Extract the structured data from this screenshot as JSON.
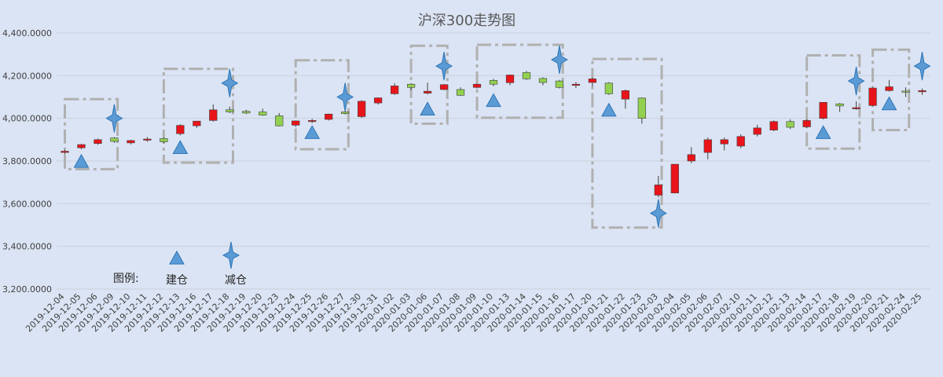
{
  "chart_data": {
    "type": "candlestick",
    "title": "沪深300走势图",
    "ylim": [
      3200,
      4400
    ],
    "y_ticks": [
      "3,200.0000",
      "3,400.0000",
      "3,600.0000",
      "3,800.0000",
      "4,000.0000",
      "4,200.0000",
      "4,400.0000"
    ],
    "y_tick_values": [
      3200,
      3400,
      3600,
      3800,
      4000,
      4200,
      4400
    ],
    "grid": true,
    "colors": {
      "up": "#e8141a",
      "down": "#92d050",
      "marker": "#5b9bd5",
      "marker_stroke": "#2e75b6",
      "box": "#b0b0b0",
      "grid": "#c8d0dc"
    },
    "dates": [
      "2019-12-04",
      "2019-12-05",
      "2019-12-06",
      "2019-12-09",
      "2019-12-10",
      "2019-12-11",
      "2019-12-12",
      "2019-12-13",
      "2019-12-16",
      "2019-12-17",
      "2019-12-18",
      "2019-12-19",
      "2019-12-20",
      "2019-12-23",
      "2019-12-24",
      "2019-12-25",
      "2019-12-26",
      "2019-12-27",
      "2019-12-30",
      "2019-12-31",
      "2020-01-02",
      "2020-01-03",
      "2020-01-06",
      "2020-01-07",
      "2020-01-08",
      "2020-01-09",
      "2020-01-10",
      "2020-01-13",
      "2020-01-14",
      "2020-01-15",
      "2020-01-16",
      "2020-01-17",
      "2020-01-20",
      "2020-01-21",
      "2020-01-22",
      "2020-01-23",
      "2020-02-03",
      "2020-02-04",
      "2020-02-05",
      "2020-02-06",
      "2020-02-07",
      "2020-02-10",
      "2020-02-11",
      "2020-02-12",
      "2020-02-13",
      "2020-02-14",
      "2020-02-17",
      "2020-02-18",
      "2020-02-19",
      "2020-02-20",
      "2020-02-21",
      "2020-02-24",
      "2020-02-25"
    ],
    "candles": [
      {
        "o": 3840,
        "h": 3852,
        "l": 3832,
        "c": 3846
      },
      {
        "o": 3862,
        "h": 3880,
        "l": 3855,
        "c": 3877
      },
      {
        "o": 3882,
        "h": 3905,
        "l": 3876,
        "c": 3900
      },
      {
        "o": 3908,
        "h": 3912,
        "l": 3885,
        "c": 3892
      },
      {
        "o": 3885,
        "h": 3900,
        "l": 3878,
        "c": 3896
      },
      {
        "o": 3900,
        "h": 3912,
        "l": 3890,
        "c": 3903
      },
      {
        "o": 3905,
        "h": 3910,
        "l": 3883,
        "c": 3890
      },
      {
        "o": 3928,
        "h": 3972,
        "l": 3920,
        "c": 3967
      },
      {
        "o": 3965,
        "h": 3988,
        "l": 3955,
        "c": 3987
      },
      {
        "o": 3990,
        "h": 4065,
        "l": 3985,
        "c": 4040
      },
      {
        "o": 4040,
        "h": 4055,
        "l": 4025,
        "c": 4030
      },
      {
        "o": 4033,
        "h": 4040,
        "l": 4020,
        "c": 4025
      },
      {
        "o": 4030,
        "h": 4045,
        "l": 4012,
        "c": 4015
      },
      {
        "o": 4012,
        "h": 4025,
        "l": 3962,
        "c": 3965
      },
      {
        "o": 3968,
        "h": 3990,
        "l": 3960,
        "c": 3988
      },
      {
        "o": 3985,
        "h": 3998,
        "l": 3978,
        "c": 3990
      },
      {
        "o": 3995,
        "h": 4022,
        "l": 3990,
        "c": 4020
      },
      {
        "o": 4030,
        "h": 4048,
        "l": 4018,
        "c": 4022
      },
      {
        "o": 4008,
        "h": 4085,
        "l": 4002,
        "c": 4080
      },
      {
        "o": 4072,
        "h": 4098,
        "l": 4065,
        "c": 4096
      },
      {
        "o": 4115,
        "h": 4165,
        "l": 4110,
        "c": 4152
      },
      {
        "o": 4160,
        "h": 4165,
        "l": 4132,
        "c": 4145
      },
      {
        "o": 4118,
        "h": 4168,
        "l": 4112,
        "c": 4127
      },
      {
        "o": 4135,
        "h": 4160,
        "l": 4132,
        "c": 4158
      },
      {
        "o": 4135,
        "h": 4145,
        "l": 4105,
        "c": 4108
      },
      {
        "o": 4145,
        "h": 4162,
        "l": 4140,
        "c": 4160
      },
      {
        "o": 4178,
        "h": 4185,
        "l": 4150,
        "c": 4160
      },
      {
        "o": 4167,
        "h": 4205,
        "l": 4155,
        "c": 4203
      },
      {
        "o": 4215,
        "h": 4222,
        "l": 4180,
        "c": 4185
      },
      {
        "o": 4187,
        "h": 4192,
        "l": 4155,
        "c": 4168
      },
      {
        "o": 4175,
        "h": 4180,
        "l": 4140,
        "c": 4145
      },
      {
        "o": 4157,
        "h": 4170,
        "l": 4142,
        "c": 4160
      },
      {
        "o": 4168,
        "h": 4190,
        "l": 4150,
        "c": 4185
      },
      {
        "o": 4165,
        "h": 4170,
        "l": 4110,
        "c": 4115
      },
      {
        "o": 4090,
        "h": 4135,
        "l": 4045,
        "c": 4130
      },
      {
        "o": 4095,
        "h": 4098,
        "l": 3975,
        "c": 4000
      },
      {
        "o": 3640,
        "h": 3730,
        "l": 3630,
        "c": 3688
      },
      {
        "o": 3650,
        "h": 3785,
        "l": 3650,
        "c": 3785
      },
      {
        "o": 3800,
        "h": 3865,
        "l": 3790,
        "c": 3830
      },
      {
        "o": 3840,
        "h": 3910,
        "l": 3808,
        "c": 3900
      },
      {
        "o": 3880,
        "h": 3910,
        "l": 3850,
        "c": 3900
      },
      {
        "o": 3870,
        "h": 3925,
        "l": 3860,
        "c": 3915
      },
      {
        "o": 3925,
        "h": 3970,
        "l": 3915,
        "c": 3955
      },
      {
        "o": 3945,
        "h": 3990,
        "l": 3940,
        "c": 3985
      },
      {
        "o": 3985,
        "h": 3995,
        "l": 3950,
        "c": 3958
      },
      {
        "o": 3960,
        "h": 3995,
        "l": 3955,
        "c": 3990
      },
      {
        "o": 4000,
        "h": 4075,
        "l": 3995,
        "c": 4075
      },
      {
        "o": 4068,
        "h": 4072,
        "l": 4030,
        "c": 4058
      },
      {
        "o": 4048,
        "h": 4080,
        "l": 4040,
        "c": 4050
      },
      {
        "o": 4060,
        "h": 4145,
        "l": 4058,
        "c": 4142
      },
      {
        "o": 4130,
        "h": 4180,
        "l": 4125,
        "c": 4148
      },
      {
        "o": 4128,
        "h": 4145,
        "l": 4100,
        "c": 4125
      },
      {
        "o": 4130,
        "h": 4140,
        "l": 4110,
        "c": 4130
      }
    ],
    "buy_markers": [
      {
        "i": 1,
        "y": 3800
      },
      {
        "i": 7,
        "y": 3865
      },
      {
        "i": 15,
        "y": 3935
      },
      {
        "i": 22,
        "y": 4045
      },
      {
        "i": 26,
        "y": 4085
      },
      {
        "i": 33,
        "y": 4040
      },
      {
        "i": 46,
        "y": 3935
      },
      {
        "i": 50,
        "y": 4070
      }
    ],
    "sell_markers": [
      {
        "i": 3,
        "y": 4000
      },
      {
        "i": 10,
        "y": 4165
      },
      {
        "i": 17,
        "y": 4100
      },
      {
        "i": 23,
        "y": 4245
      },
      {
        "i": 30,
        "y": 4275
      },
      {
        "i": 36,
        "y": 3555
      },
      {
        "i": 48,
        "y": 4175
      },
      {
        "i": 52,
        "y": 4245
      }
    ],
    "boxes": [
      {
        "i0": 0.5,
        "i1": 3.7,
        "y0": 3762,
        "y1": 4090
      },
      {
        "i0": 6.5,
        "i1": 10.7,
        "y0": 3792,
        "y1": 4232
      },
      {
        "i0": 14.5,
        "i1": 17.7,
        "y0": 3855,
        "y1": 4272
      },
      {
        "i0": 21.5,
        "i1": 23.7,
        "y0": 3975,
        "y1": 4340
      },
      {
        "i0": 25.5,
        "i1": 30.7,
        "y0": 4003,
        "y1": 4345
      },
      {
        "i0": 32.5,
        "i1": 36.7,
        "y0": 3488,
        "y1": 4278
      },
      {
        "i0": 45.5,
        "i1": 48.7,
        "y0": 3858,
        "y1": 4295
      },
      {
        "i0": 49.5,
        "i1": 51.7,
        "y0": 3945,
        "y1": 4322
      }
    ],
    "legend": {
      "label": "图例:",
      "buy": "建仓",
      "sell": "减仓"
    }
  }
}
